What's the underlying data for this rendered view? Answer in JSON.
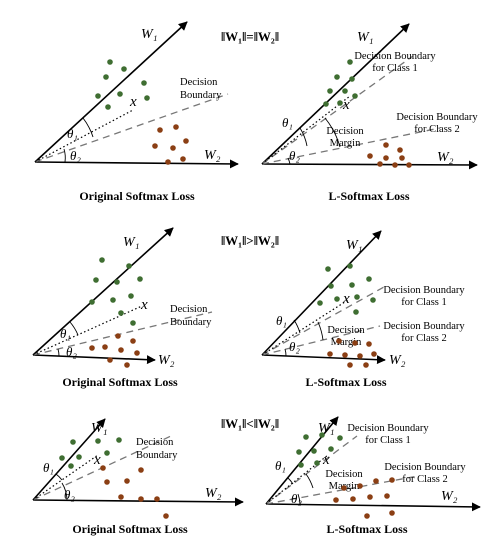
{
  "rows": [
    {
      "heading": "‖W₁‖=‖W₂‖",
      "left": {
        "caption": "Original Softmax Loss",
        "w1": "W₁",
        "w2": "W₂",
        "theta1": "θ₁",
        "theta2": "θ₂",
        "x": "x",
        "boundary": [
          "Decision",
          "Boundary"
        ]
      },
      "right": {
        "caption": "L-Softmax Loss",
        "w1": "W₁",
        "w2": "W₂",
        "theta1": "θ₁",
        "theta2": "θ₂",
        "x": "x",
        "boundary1": [
          "Decision Boundary",
          "for Class 1"
        ],
        "boundary2": [
          "Decision Boundary",
          "for Class 2"
        ],
        "margin": [
          "Decision",
          "Margin"
        ]
      }
    },
    {
      "heading": "‖W₁‖>‖W₂‖",
      "left": {
        "caption": "Original Softmax Loss",
        "w1": "W₁",
        "w2": "W₂",
        "theta1": "θ₁",
        "theta2": "θ₂",
        "x": "x",
        "boundary": [
          "Decision",
          "Boundary"
        ]
      },
      "right": {
        "caption": "L-Softmax Loss",
        "w1": "W₁",
        "w2": "W₂",
        "theta1": "θ₁",
        "theta2": "θ₂",
        "x": "x",
        "boundary1": [
          "Decision Boundary",
          "for Class 1"
        ],
        "boundary2": [
          "Decision Boundary",
          "for Class 2"
        ],
        "margin": [
          "Decision",
          "Margin"
        ]
      }
    },
    {
      "heading": "‖W₁‖<‖W₂‖",
      "left": {
        "caption": "Original Softmax Loss",
        "w1": "W₁",
        "w2": "W₂",
        "theta1": "θ₁",
        "theta2": "θ₂",
        "x": "x",
        "boundary": [
          "Decision",
          "Boundary"
        ]
      },
      "right": {
        "caption": "L-Softmax Loss",
        "w1": "W₁",
        "w2": "W₂",
        "theta1": "θ₁",
        "theta2": "θ₂",
        "x": "x",
        "boundary1": [
          "Decision Boundary",
          "for Class 1"
        ],
        "boundary2": [
          "Decision Boundary",
          "for Class 2"
        ],
        "margin": [
          "Decision",
          "Margin"
        ]
      }
    }
  ],
  "colors": {
    "class1_points": "#3f6e32",
    "class2_points": "#8b3f14"
  }
}
